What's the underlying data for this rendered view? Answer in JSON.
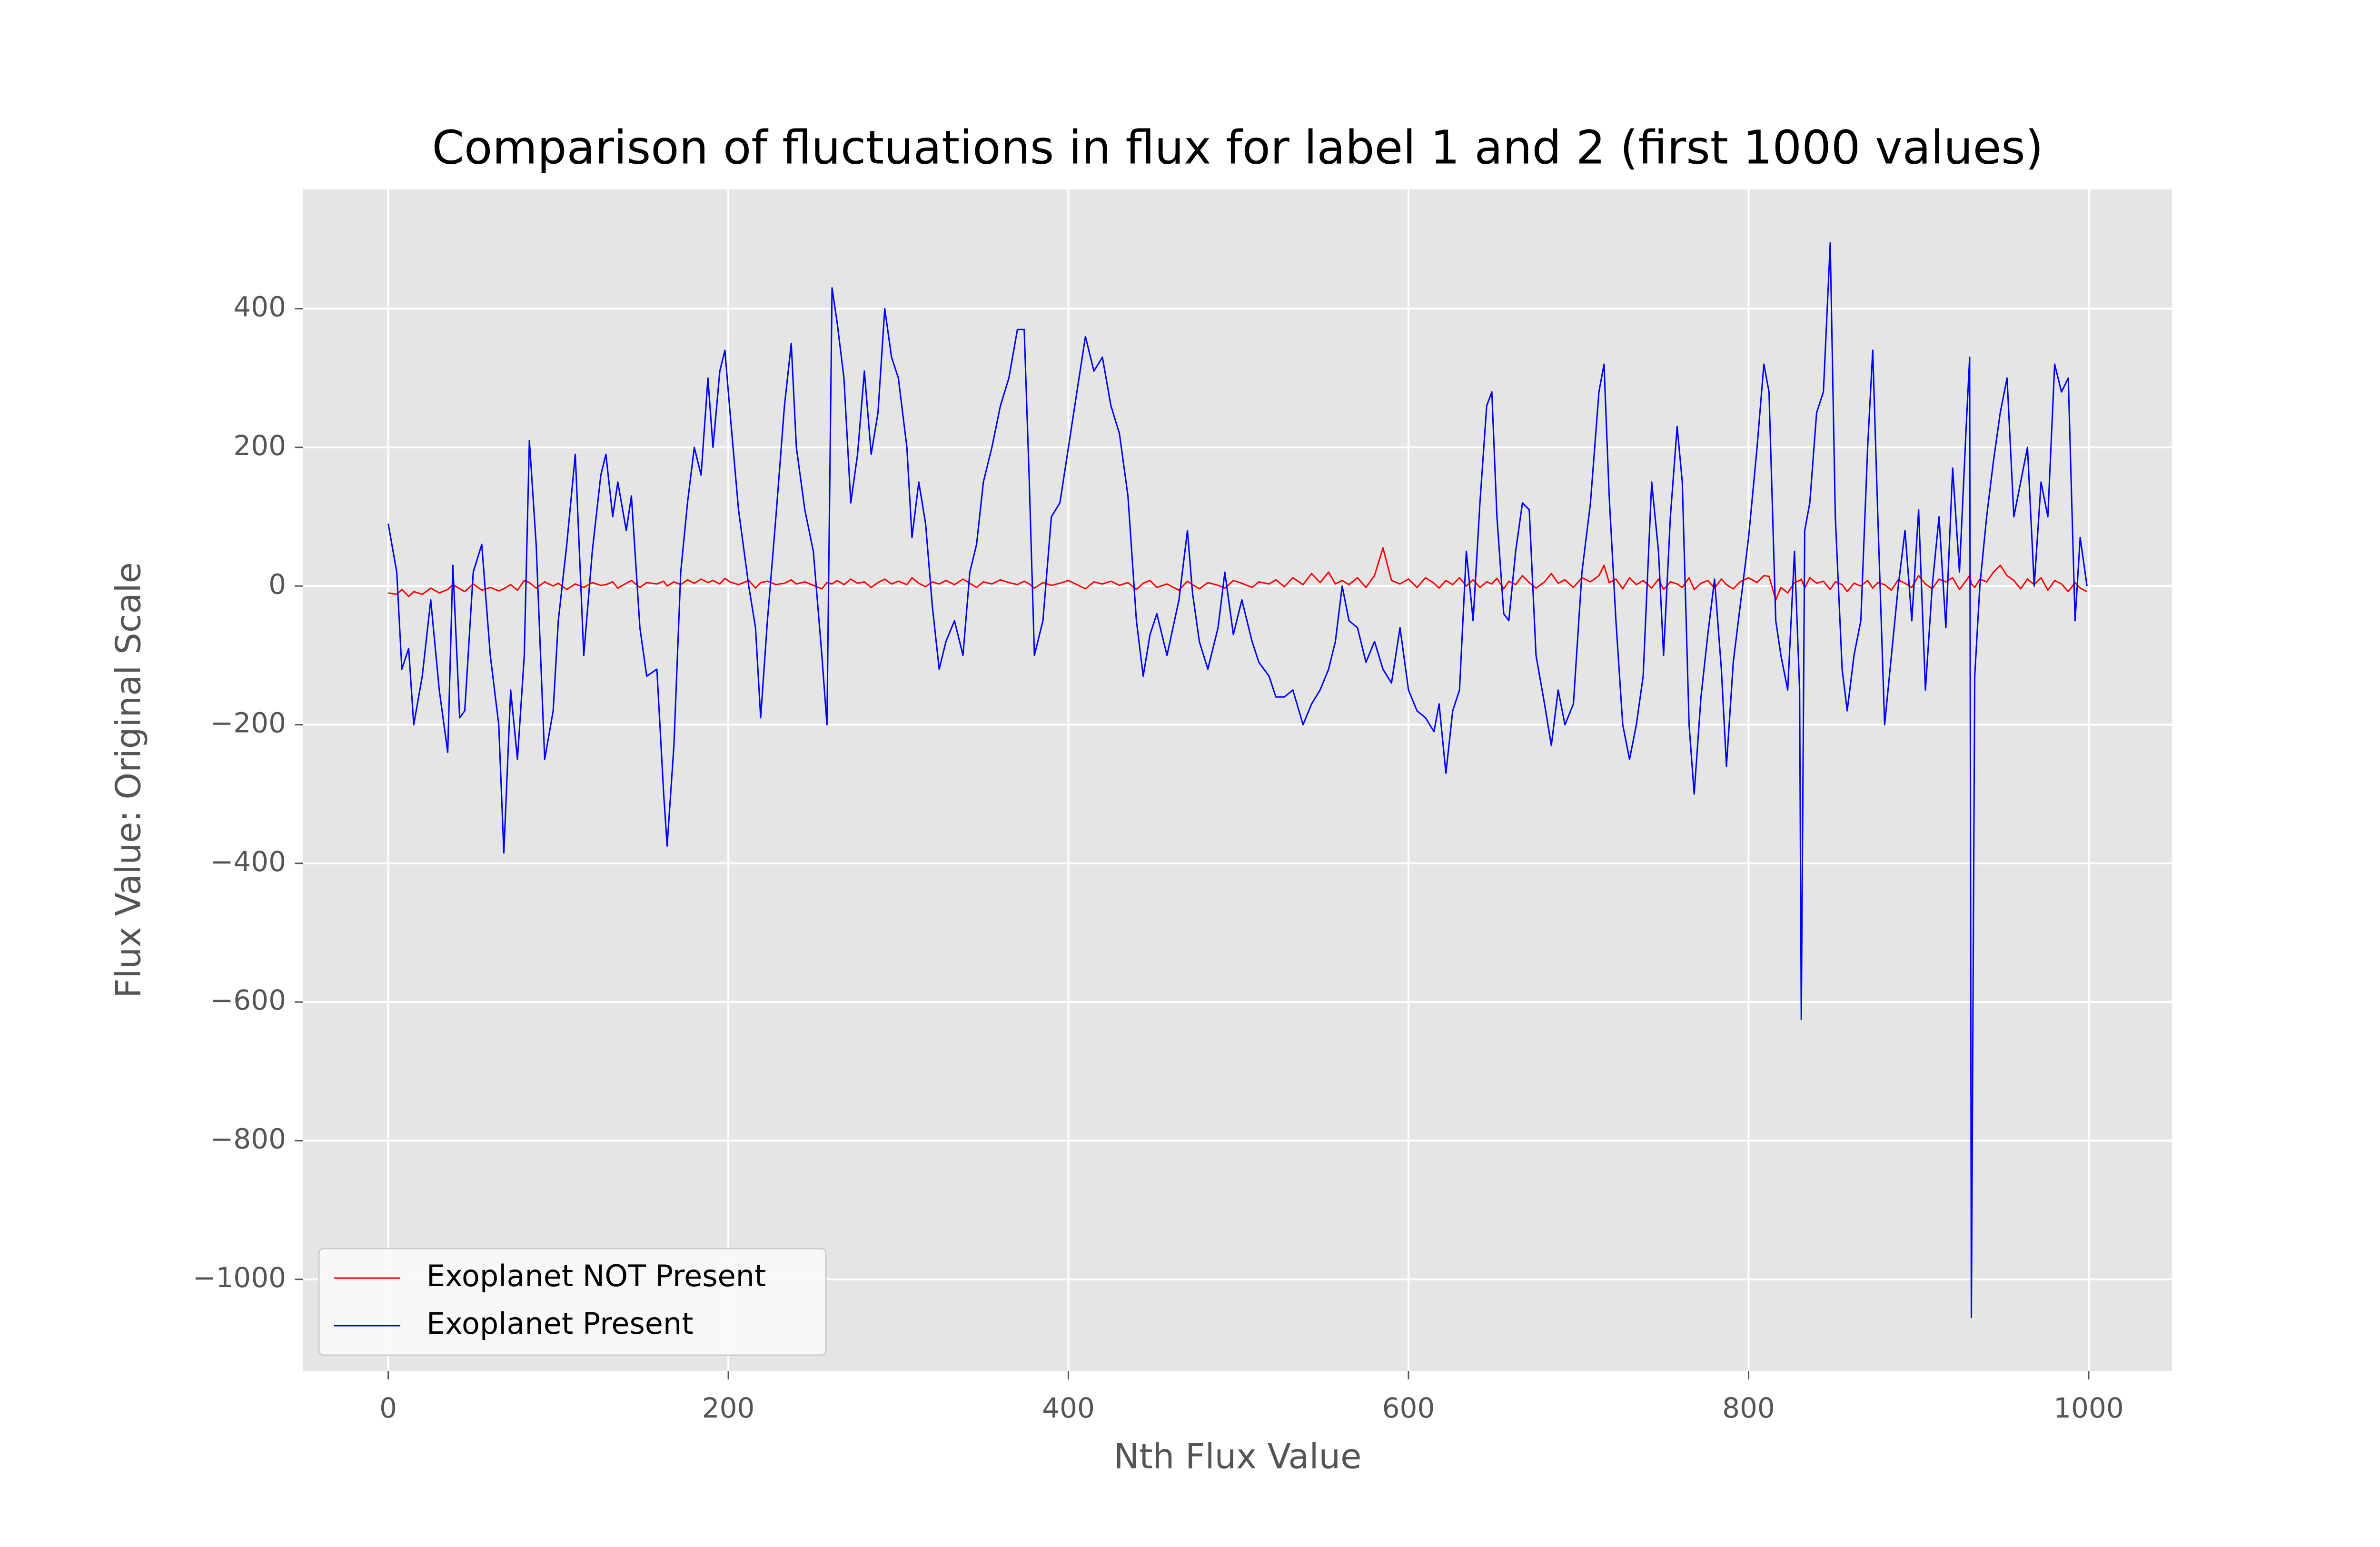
{
  "chart_data": {
    "type": "line",
    "title": "Comparison of fluctuations in flux for label 1 and 2 (first 1000 values)",
    "x_label": "Nth Flux Value",
    "y_label": "Flux Value: Original Scale",
    "xlim": [
      -50,
      1049
    ],
    "ylim": [
      -1132,
      572
    ],
    "xticks": [
      0,
      200,
      400,
      600,
      800,
      1000
    ],
    "yticks": [
      {
        "value": -1000,
        "label": "−1000"
      },
      {
        "value": -800,
        "label": "−800"
      },
      {
        "value": -600,
        "label": "−600"
      },
      {
        "value": -400,
        "label": "−400"
      },
      {
        "value": -200,
        "label": "−200"
      },
      0,
      200,
      400
    ],
    "grid": true,
    "legend": "lower left",
    "x": [
      0,
      5,
      8,
      12,
      15,
      20,
      25,
      30,
      35,
      38,
      42,
      45,
      50,
      55,
      60,
      65,
      68,
      72,
      76,
      80,
      83,
      87,
      92,
      97,
      100,
      105,
      110,
      115,
      120,
      125,
      128,
      132,
      135,
      140,
      143,
      148,
      152,
      158,
      162,
      164,
      168,
      172,
      176,
      180,
      184,
      188,
      191,
      195,
      198,
      201,
      206,
      212,
      216,
      219,
      223,
      228,
      233,
      237,
      240,
      245,
      250,
      255,
      258,
      261,
      264,
      268,
      272,
      276,
      280,
      284,
      288,
      292,
      296,
      300,
      305,
      308,
      312,
      316,
      320,
      324,
      328,
      333,
      338,
      342,
      346,
      350,
      355,
      360,
      365,
      370,
      374,
      377,
      380,
      385,
      390,
      395,
      400,
      405,
      410,
      415,
      420,
      425,
      430,
      435,
      440,
      444,
      448,
      452,
      458,
      465,
      470,
      473,
      477,
      482,
      488,
      492,
      497,
      502,
      508,
      512,
      518,
      522,
      527,
      532,
      538,
      543,
      548,
      553,
      557,
      561,
      565,
      570,
      575,
      580,
      585,
      590,
      595,
      600,
      605,
      610,
      615,
      618,
      622,
      626,
      630,
      634,
      638,
      642,
      646,
      649,
      652,
      656,
      659,
      663,
      667,
      671,
      675,
      680,
      684,
      688,
      692,
      697,
      702,
      707,
      712,
      715,
      718,
      722,
      726,
      730,
      734,
      738,
      743,
      747,
      750,
      754,
      758,
      761,
      765,
      768,
      772,
      776,
      780,
      784,
      787,
      791,
      795,
      800,
      805,
      809,
      812,
      816,
      819,
      823,
      827,
      830,
      831,
      833,
      836,
      840,
      844,
      848,
      851,
      855,
      858,
      862,
      866,
      870,
      873,
      876,
      880,
      884,
      888,
      892,
      896,
      900,
      904,
      908,
      912,
      916,
      920,
      924,
      928,
      930,
      931,
      933,
      936,
      940,
      944,
      948,
      952,
      956,
      960,
      964,
      968,
      972,
      976,
      980,
      984,
      988,
      992,
      995,
      999
    ],
    "series": [
      {
        "name": "Exoplanet NOT Present",
        "color": "#ff0000",
        "values": [
          -10,
          -12,
          -5,
          -15,
          -8,
          -12,
          -3,
          -10,
          -5,
          2,
          -4,
          -8,
          3,
          -6,
          -2,
          -7,
          -4,
          2,
          -6,
          8,
          5,
          -3,
          6,
          0,
          4,
          -5,
          3,
          -2,
          5,
          1,
          2,
          6,
          -3,
          4,
          8,
          -2,
          5,
          3,
          7,
          0,
          6,
          2,
          9,
          4,
          10,
          5,
          8,
          3,
          11,
          6,
          2,
          8,
          -3,
          5,
          7,
          2,
          4,
          9,
          3,
          6,
          1,
          -4,
          5,
          3,
          8,
          2,
          10,
          4,
          6,
          -2,
          5,
          10,
          3,
          7,
          2,
          12,
          4,
          -1,
          6,
          3,
          8,
          2,
          10,
          4,
          -2,
          6,
          3,
          9,
          5,
          2,
          7,
          3,
          -3,
          5,
          1,
          4,
          8,
          2,
          -4,
          6,
          3,
          7,
          1,
          5,
          -5,
          4,
          8,
          -2,
          3,
          -6,
          7,
          2,
          -4,
          5,
          1,
          -3,
          8,
          4,
          -2,
          6,
          3,
          9,
          -1,
          12,
          2,
          18,
          5,
          20,
          3,
          8,
          2,
          12,
          -2,
          15,
          55,
          8,
          3,
          10,
          -2,
          12,
          4,
          -3,
          8,
          2,
          12,
          0,
          9,
          -2,
          6,
          3,
          11,
          -4,
          7,
          2,
          15,
          5,
          -3,
          6,
          18,
          4,
          9,
          -2,
          12,
          6,
          15,
          30,
          5,
          10,
          -4,
          12,
          2,
          8,
          -3,
          10,
          -5,
          6,
          3,
          -2,
          12,
          -5,
          4,
          8,
          -3,
          10,
          2,
          -4,
          6,
          12,
          5,
          15,
          14,
          -20,
          -2,
          -10,
          5,
          8,
          10,
          -3,
          12,
          4,
          7,
          -5,
          6,
          2,
          -8,
          4,
          0,
          8,
          -3,
          5,
          2,
          -6,
          9,
          4,
          -2,
          15,
          3,
          -4,
          10,
          6,
          12,
          -5,
          8,
          15,
          3,
          -2,
          10,
          6,
          20,
          30,
          15,
          8,
          -4,
          10,
          2,
          12,
          -6,
          8,
          3,
          -8,
          5,
          -3,
          -8
        ]
      },
      {
        "name": "Exoplanet Present",
        "color": "#0000ff",
        "values": [
          90,
          20,
          -120,
          -90,
          -200,
          -130,
          -20,
          -150,
          -240,
          30,
          -190,
          -180,
          20,
          60,
          -100,
          -200,
          -385,
          -150,
          -250,
          -100,
          210,
          60,
          -250,
          -180,
          -50,
          60,
          190,
          -100,
          50,
          160,
          190,
          100,
          150,
          80,
          130,
          -60,
          -130,
          -120,
          -300,
          -375,
          -230,
          20,
          120,
          200,
          160,
          300,
          200,
          310,
          340,
          250,
          110,
          0,
          -60,
          -190,
          -50,
          100,
          260,
          350,
          200,
          110,
          50,
          -100,
          -200,
          430,
          380,
          300,
          120,
          190,
          310,
          190,
          250,
          400,
          330,
          300,
          200,
          70,
          150,
          90,
          -30,
          -120,
          -80,
          -50,
          -100,
          20,
          60,
          150,
          200,
          260,
          300,
          370,
          370,
          150,
          -100,
          -50,
          100,
          120,
          200,
          280,
          360,
          310,
          330,
          260,
          220,
          130,
          -50,
          -130,
          -70,
          -40,
          -100,
          -20,
          80,
          -10,
          -80,
          -120,
          -60,
          20,
          -70,
          -20,
          -80,
          -110,
          -130,
          -160,
          -160,
          -150,
          -200,
          -170,
          -150,
          -120,
          -80,
          0,
          -50,
          -60,
          -110,
          -80,
          -120,
          -140,
          -60,
          -150,
          -180,
          -190,
          -210,
          -170,
          -270,
          -180,
          -150,
          50,
          -50,
          120,
          260,
          280,
          100,
          -40,
          -50,
          50,
          120,
          110,
          -100,
          -170,
          -230,
          -150,
          -200,
          -170,
          20,
          120,
          280,
          320,
          130,
          -50,
          -200,
          -250,
          -200,
          -130,
          150,
          50,
          -100,
          100,
          230,
          150,
          -200,
          -300,
          -160,
          -70,
          10,
          -120,
          -260,
          -110,
          -30,
          70,
          200,
          320,
          280,
          -50,
          -100,
          -150,
          50,
          -150,
          -625,
          80,
          120,
          250,
          280,
          495,
          100,
          -120,
          -180,
          -100,
          -50,
          200,
          340,
          100,
          -200,
          -100,
          0,
          80,
          -50,
          110,
          -150,
          0,
          100,
          -60,
          170,
          20,
          230,
          330,
          -1055,
          -130,
          0,
          100,
          180,
          250,
          300,
          100,
          150,
          200,
          0,
          150,
          100,
          320,
          280,
          300,
          -50,
          70,
          0
        ]
      }
    ]
  }
}
